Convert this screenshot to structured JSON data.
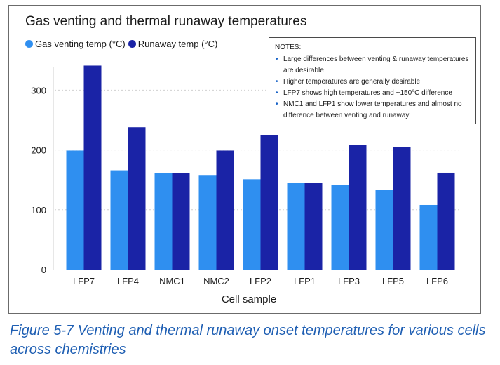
{
  "chart_data": {
    "type": "bar",
    "title": "Gas venting and thermal runaway temperatures",
    "xlabel": "Cell sample",
    "ylabel": "",
    "categories": [
      "LFP7",
      "LFP4",
      "NMC1",
      "NMC2",
      "LFP2",
      "LFP1",
      "LFP3",
      "LFP5",
      "LFP6"
    ],
    "series": [
      {
        "name": "Gas venting temp (°C)",
        "color": "#2f8ff0",
        "values": [
          199,
          166,
          161,
          157,
          151,
          145,
          141,
          133,
          108
        ]
      },
      {
        "name": "Runaway temp (°C)",
        "color": "#1a23a6",
        "values": [
          341,
          238,
          161,
          199,
          225,
          145,
          208,
          205,
          162
        ]
      }
    ],
    "yticks": [
      0,
      100,
      200,
      300
    ],
    "ylim": [
      0,
      350
    ],
    "grid": true
  },
  "notes": {
    "heading": "NOTES:",
    "items": [
      "Large differences between venting & runaway temperatures are desirable",
      "Higher temperatures are generally desirable",
      "LFP7 shows high temperatures and ~150°C difference",
      "NMC1 and LFP1 show lower temperatures and almost no difference between venting and runaway"
    ]
  },
  "caption": "Figure 5-7  Venting and thermal runaway onset temperatures for various cells across chemistries"
}
